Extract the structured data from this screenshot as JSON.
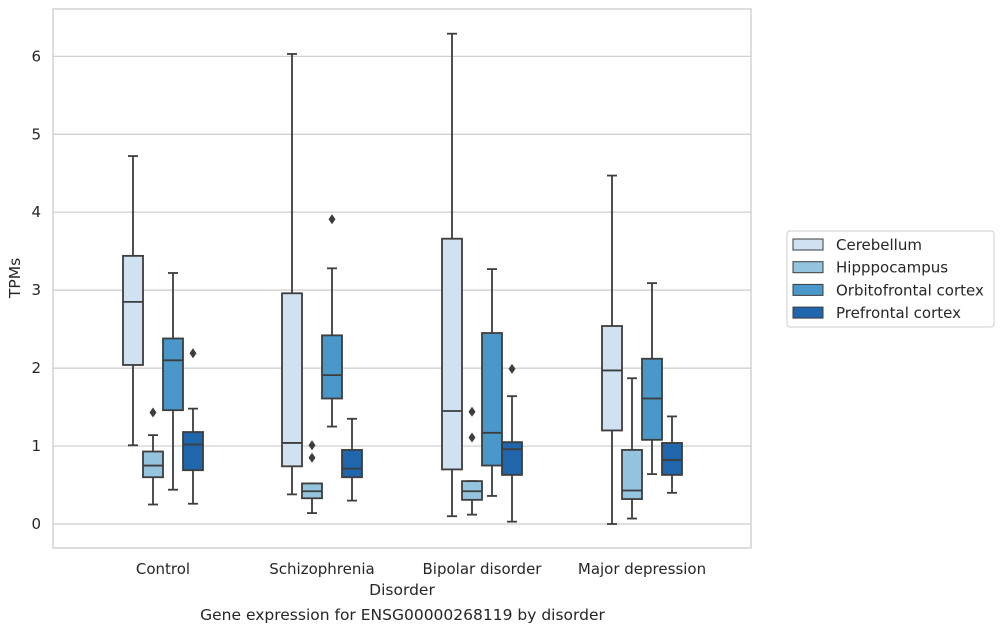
{
  "caption": "Gene expression for ENSG00000268119 by disorder",
  "chart_data": {
    "type": "boxplot",
    "xlabel": "Disorder",
    "ylabel": "TPMs",
    "ylim": [
      -0.3,
      6.5
    ],
    "yticks": [
      0,
      1,
      2,
      3,
      4,
      5,
      6
    ],
    "grid": "horizontal",
    "legend_position": "right",
    "categories": [
      "Control",
      "Schizophrenia",
      "Bipolar disorder",
      "Major depression"
    ],
    "series": [
      {
        "name": "Cerebellum",
        "color": "#d0e1f2",
        "boxes": [
          {
            "whislo": 1.01,
            "q1": 2.04,
            "med": 2.85,
            "q3": 3.44,
            "whishi": 4.72,
            "fliers": []
          },
          {
            "whislo": 0.38,
            "q1": 0.74,
            "med": 1.04,
            "q3": 2.96,
            "whishi": 6.03,
            "fliers": []
          },
          {
            "whislo": 0.1,
            "q1": 0.7,
            "med": 1.45,
            "q3": 3.66,
            "whishi": 6.29,
            "fliers": []
          },
          {
            "whislo": 0.0,
            "q1": 1.2,
            "med": 1.97,
            "q3": 2.54,
            "whishi": 4.47,
            "fliers": []
          }
        ]
      },
      {
        "name": "Hipppocampus",
        "color": "#94c4df",
        "boxes": [
          {
            "whislo": 0.25,
            "q1": 0.6,
            "med": 0.75,
            "q3": 0.93,
            "whishi": 1.14,
            "fliers": [
              1.43
            ]
          },
          {
            "whislo": 0.14,
            "q1": 0.33,
            "med": 0.42,
            "q3": 0.52,
            "whishi": 0.52,
            "fliers": [
              1.01,
              0.85
            ]
          },
          {
            "whislo": 0.12,
            "q1": 0.31,
            "med": 0.42,
            "q3": 0.55,
            "whishi": 0.55,
            "fliers": [
              1.44,
              1.11
            ]
          },
          {
            "whislo": 0.07,
            "q1": 0.32,
            "med": 0.43,
            "q3": 0.95,
            "whishi": 1.87,
            "fliers": []
          }
        ]
      },
      {
        "name": "Orbitofrontal cortex",
        "color": "#4a98c9",
        "boxes": [
          {
            "whislo": 0.44,
            "q1": 1.46,
            "med": 2.1,
            "q3": 2.38,
            "whishi": 3.22,
            "fliers": []
          },
          {
            "whislo": 1.25,
            "q1": 1.61,
            "med": 1.91,
            "q3": 2.42,
            "whishi": 3.28,
            "fliers": [
              3.91
            ]
          },
          {
            "whislo": 0.36,
            "q1": 0.75,
            "med": 1.17,
            "q3": 2.45,
            "whishi": 3.27,
            "fliers": []
          },
          {
            "whislo": 0.64,
            "q1": 1.08,
            "med": 1.61,
            "q3": 2.12,
            "whishi": 3.09,
            "fliers": []
          }
        ]
      },
      {
        "name": "Prefrontal cortex",
        "color": "#2066ac",
        "boxes": [
          {
            "whislo": 0.26,
            "q1": 0.69,
            "med": 1.02,
            "q3": 1.18,
            "whishi": 1.48,
            "fliers": [
              2.19
            ]
          },
          {
            "whislo": 0.3,
            "q1": 0.6,
            "med": 0.71,
            "q3": 0.95,
            "whishi": 1.35,
            "fliers": []
          },
          {
            "whislo": 0.03,
            "q1": 0.63,
            "med": 0.96,
            "q3": 1.05,
            "whishi": 1.64,
            "fliers": [
              1.99
            ]
          },
          {
            "whislo": 0.4,
            "q1": 0.63,
            "med": 0.82,
            "q3": 1.04,
            "whishi": 1.38,
            "fliers": []
          }
        ]
      }
    ]
  }
}
